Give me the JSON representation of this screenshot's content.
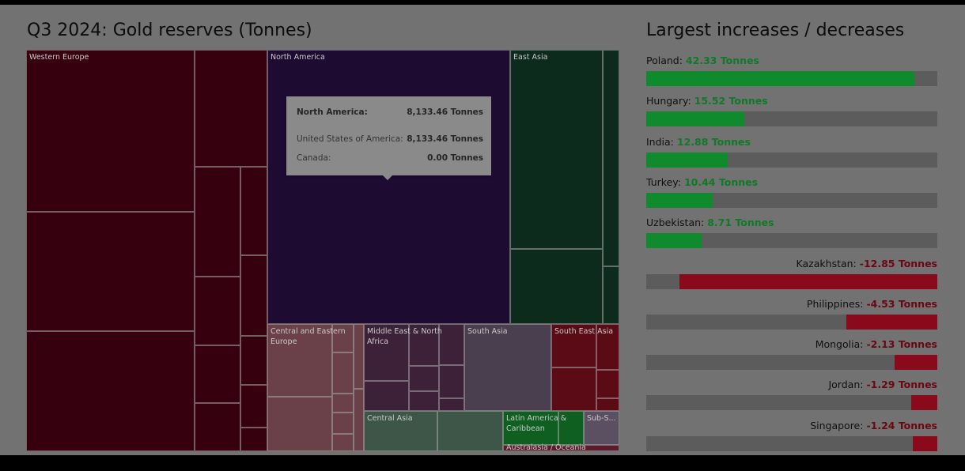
{
  "colors": {
    "increase": "#0f8a2c",
    "decrease": "#8a0a1c",
    "increase_text": "#0f7a25",
    "decrease_text": "#6a0713"
  },
  "chart_data": [
    {
      "type": "treemap",
      "title": "Q3 2024: Gold reserves (Tonnes)",
      "unit": "Tonnes",
      "regions": [
        {
          "name": "Western Europe",
          "color": "#37000e",
          "value": 12200
        },
        {
          "name": "North America",
          "color": "#1e0b31",
          "value": 8133.46
        },
        {
          "name": "East Asia",
          "color": "#0c2b1c",
          "value": 3450
        },
        {
          "name": "Central and Eastern Europe",
          "color": "#6a4148",
          "value": 1380
        },
        {
          "name": "Middle East & North Africa",
          "color": "#3c2138",
          "value": 1330
        },
        {
          "name": "South Asia",
          "color": "#4a3f4f",
          "value": 950
        },
        {
          "name": "South East Asia",
          "color": "#5a0b15",
          "value": 880
        },
        {
          "name": "Central Asia",
          "color": "#3d5648",
          "value": 1150
        },
        {
          "name": "Latin America & Caribbean",
          "color": "#0e5f20",
          "value": 560
        },
        {
          "name": "Sub-S...",
          "color": "#5b5061",
          "value": 250
        },
        {
          "name": "Australasia / Oceania",
          "color": "#5a1c2a",
          "value": 80
        }
      ]
    },
    {
      "type": "bar",
      "title": "Largest increases / decreases",
      "unit": "Tonnes",
      "max_abs": 46,
      "items": [
        {
          "name": "Poland:",
          "value": 42.33,
          "label": "42.33 Tonnes"
        },
        {
          "name": "Hungary:",
          "value": 15.52,
          "label": "15.52 Tonnes"
        },
        {
          "name": "India:",
          "value": 12.88,
          "label": "12.88 Tonnes"
        },
        {
          "name": "Turkey:",
          "value": 10.44,
          "label": "10.44 Tonnes"
        },
        {
          "name": "Uzbekistan:",
          "value": 8.71,
          "label": "8.71 Tonnes"
        },
        {
          "name": "Kazakhstan:",
          "value": -12.85,
          "label": "-12.85 Tonnes"
        },
        {
          "name": "Philippines:",
          "value": -4.53,
          "label": "-4.53 Tonnes"
        },
        {
          "name": "Mongolia:",
          "value": -2.13,
          "label": "-2.13 Tonnes"
        },
        {
          "name": "Jordan:",
          "value": -1.29,
          "label": "-1.29 Tonnes"
        },
        {
          "name": "Singapore:",
          "value": -1.24,
          "label": "-1.24 Tonnes"
        }
      ]
    }
  ],
  "tooltip": {
    "header_label": "North America:",
    "header_value": "8,133.46 Tonnes",
    "rows": [
      {
        "label": "United States of America:",
        "value": "8,133.46 Tonnes"
      },
      {
        "label": "Canada:",
        "value": "0.00 Tonnes"
      }
    ]
  }
}
